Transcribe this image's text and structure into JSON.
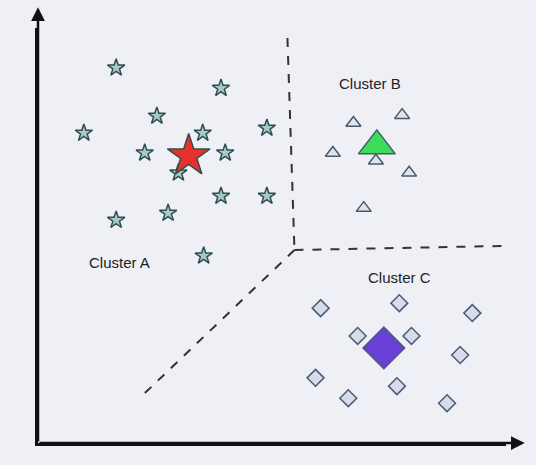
{
  "chart_data": {
    "type": "scatter",
    "xlim": [
      0,
      100
    ],
    "ylim": [
      0,
      100
    ],
    "tick_labels": false,
    "grid": false,
    "series": [
      {
        "name": "Cluster A",
        "marker": "star",
        "color": "#a9c9c6",
        "x": [
          16.7,
          39.1,
          9.8,
          25.4,
          48.9,
          35.2,
          22.8,
          40.0,
          30.0,
          16.7,
          27.8,
          39.1,
          48.9,
          35.4
        ],
        "y": [
          90.4,
          85.5,
          74.7,
          78.8,
          75.9,
          74.7,
          69.9,
          69.9,
          65.1,
          53.7,
          55.4,
          59.5,
          59.5,
          45.1
        ],
        "centroid": {
          "x": 32.2,
          "y": 69.2,
          "color": "#e8312a"
        },
        "label_x": 17.4,
        "label_y": 43.4
      },
      {
        "name": "Cluster B",
        "marker": "triangle-up",
        "color": "#dde6ee",
        "x": [
          67.4,
          77.8,
          63.0,
          72.2,
          79.3,
          69.6
        ],
        "y": [
          77.1,
          79.0,
          69.9,
          68.0,
          65.1,
          56.6
        ],
        "centroid": {
          "x": 72.4,
          "y": 71.6,
          "color": "#3ddc5a"
        },
        "label_x": 70.9,
        "label_y": 86.7
      },
      {
        "name": "Cluster C",
        "marker": "diamond",
        "color": "#d6dde8",
        "x": [
          60.4,
          68.3,
          79.8,
          92.8,
          77.2,
          90.2,
          59.3,
          76.7,
          66.3,
          87.4
        ],
        "y": [
          32.5,
          25.8,
          25.8,
          31.3,
          33.7,
          21.2,
          15.7,
          13.7,
          10.8,
          9.6
        ],
        "centroid": {
          "x": 73.9,
          "y": 22.9,
          "color": "#6a3fd8"
        },
        "label_x": 77.2,
        "label_y": 39.8
      }
    ],
    "boundaries": {
      "line_style": "dashed",
      "color": "#333333",
      "segments": [
        {
          "x": [
            53.3,
            54.8
          ],
          "y": [
            97.6,
            46.5
          ]
        },
        {
          "x": [
            54.8,
            100
          ],
          "y": [
            46.5,
            47.5
          ]
        },
        {
          "x": [
            54.8,
            22.8
          ],
          "y": [
            46.5,
            12.0
          ]
        }
      ]
    }
  }
}
